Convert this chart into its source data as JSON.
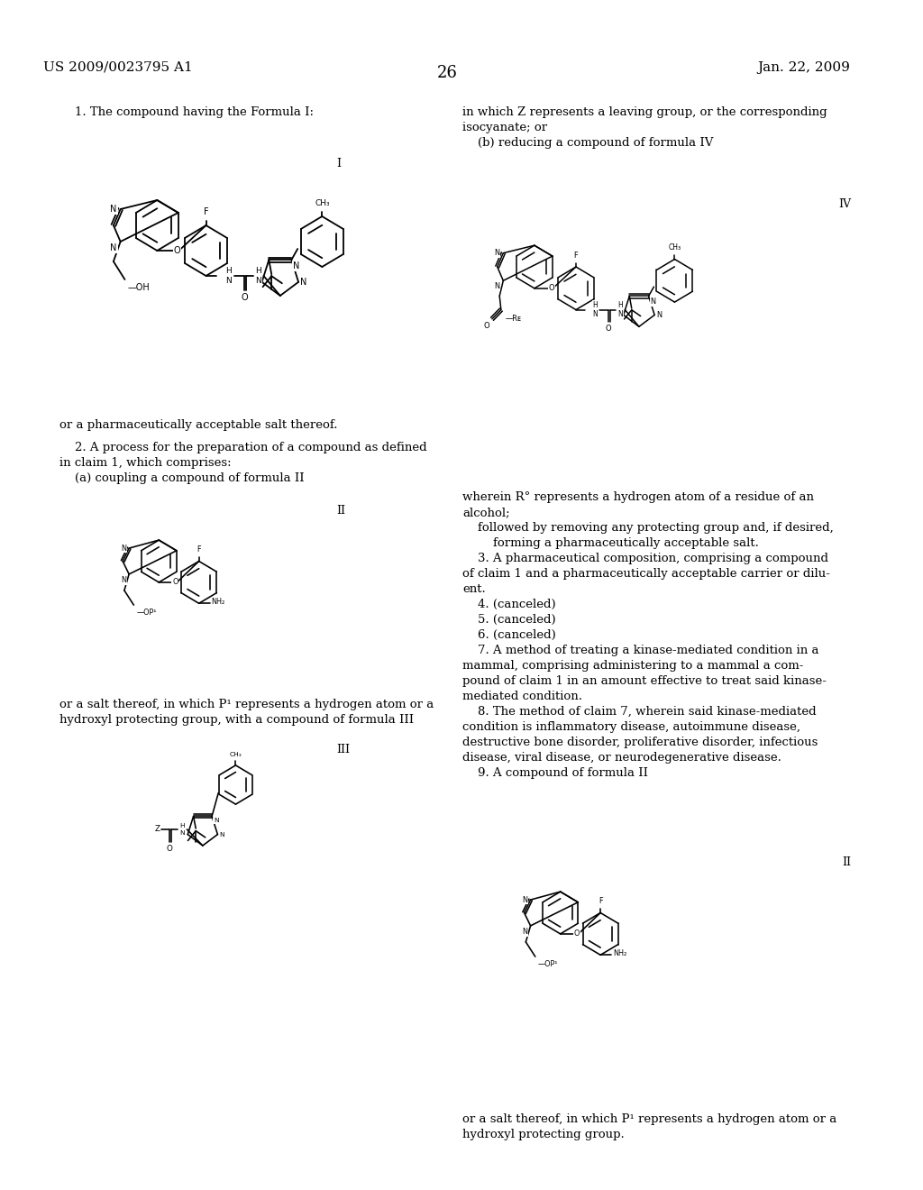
{
  "page_num": "26",
  "header_left": "US 2009/0023795 A1",
  "header_right": "Jan. 22, 2009",
  "background_color": "#ffffff",
  "text_color": "#000000",
  "font_size_body": 9.5,
  "font_size_header": 11,
  "font_size_page_num": 13,
  "claim1_text": "1. The compound having the Formula I:",
  "formula_I_label": "I",
  "formula_II_label": "II",
  "formula_III_label": "III",
  "formula_IV_label": "IV",
  "claim1_footer": "or a pharmaceutically acceptable salt thereof.",
  "claim2_text": "2. A process for the preparation of a compound as defined\nin claim 1, which comprises:\n    (a) coupling a compound of formula II",
  "claim2_mid1": "or a salt thereof, in which P¹ represents a hydrogen atom or a\nhydroxyl protecting group, with a compound of formula III",
  "right_col_text1": "in which Z represents a leaving group, or the corresponding\nisocyanate; or\n    (b) reducing a compound of formula IV",
  "right_col_text2": "wherein R° represents a hydrogen atom of a residue of an\nalcohol;\n    followed by removing any protecting group and, if desired,\n        forming a pharmaceutically acceptable salt.\n    3. A pharmaceutical composition, comprising a compound\nof claim 1 and a pharmaceutically acceptable carrier or dilu-\nent.\n    4. (canceled)\n    5. (canceled)\n    6. (canceled)\n    7. A method of treating a kinase-mediated condition in a\nmammal, comprising administering to a mammal a com-\npound of claim 1 in an amount effective to treat said kinase-\nmediated condition.\n    8. The method of claim 7, wherein said kinase-mediated\ncondition is inflammatory disease, autoimmune disease,\ndestructive bone disorder, proliferative disorder, infectious\ndisease, viral disease, or neurodegenerative disease.\n    9. A compound of formula II",
  "right_col_text3": "or a salt thereof, in which P¹ represents a hydrogen atom or a\nhydroxyl protecting group."
}
